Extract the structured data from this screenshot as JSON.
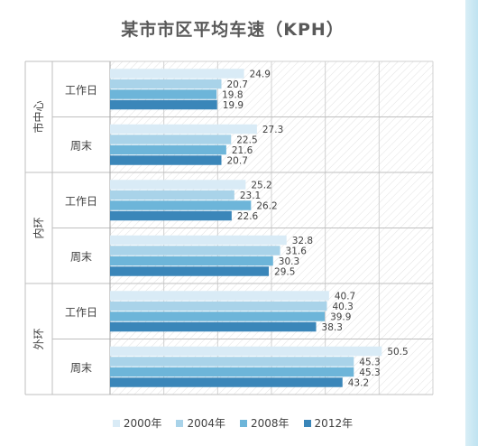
{
  "chart_data": {
    "type": "bar",
    "orientation": "horizontal",
    "title": "某市市区平均车速（KPH）",
    "groups": [
      {
        "label": "市中心",
        "categories": [
          "工作日",
          "周末"
        ]
      },
      {
        "label": "内环",
        "categories": [
          "工作日",
          "周末"
        ]
      },
      {
        "label": "外环",
        "categories": [
          "工作日",
          "周末"
        ]
      }
    ],
    "series": [
      {
        "name": "2000年",
        "color": "#d9ebf6",
        "values": [
          24.9,
          27.3,
          25.2,
          32.8,
          40.7,
          50.5
        ]
      },
      {
        "name": "2004年",
        "color": "#a9d3e9",
        "values": [
          20.7,
          22.5,
          23.1,
          31.6,
          40.3,
          45.3
        ]
      },
      {
        "name": "2008年",
        "color": "#6db5d9",
        "values": [
          19.8,
          21.6,
          26.2,
          30.3,
          39.9,
          45.3
        ]
      },
      {
        "name": "2012年",
        "color": "#3a86b9",
        "values": [
          19.9,
          20.7,
          22.6,
          29.5,
          38.3,
          43.2
        ]
      }
    ],
    "xlim": [
      0,
      60
    ],
    "grid": true,
    "legend_position": "bottom"
  }
}
